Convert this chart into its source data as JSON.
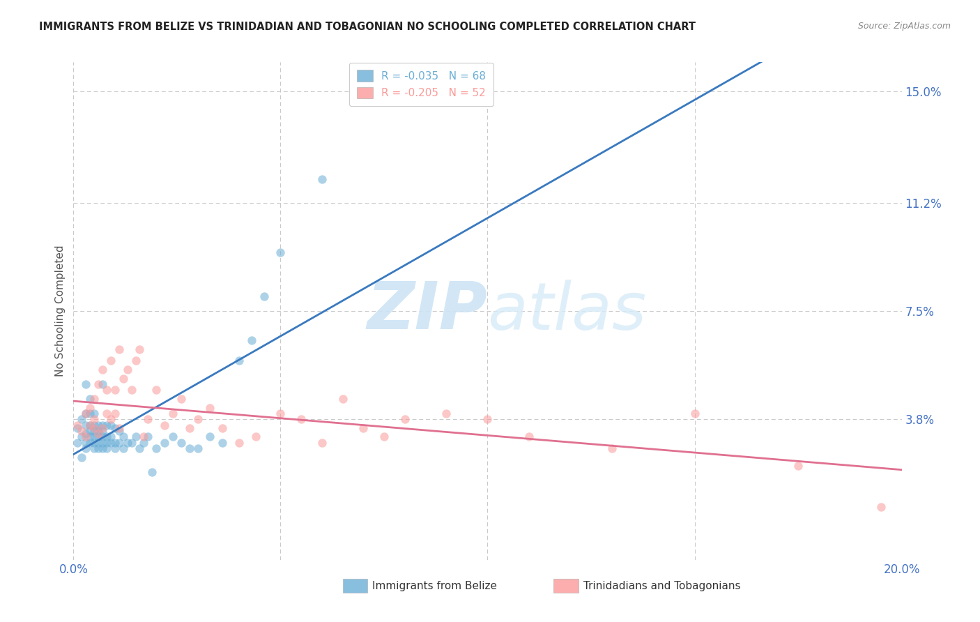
{
  "title": "IMMIGRANTS FROM BELIZE VS TRINIDADIAN AND TOBAGONIAN NO SCHOOLING COMPLETED CORRELATION CHART",
  "source": "Source: ZipAtlas.com",
  "ylabel_label": "No Schooling Completed",
  "right_yticks": [
    0.0,
    0.038,
    0.075,
    0.112,
    0.15
  ],
  "right_yticklabels": [
    "",
    "3.8%",
    "7.5%",
    "11.2%",
    "15.0%"
  ],
  "xmin": 0.0,
  "xmax": 0.2,
  "ymin": -0.01,
  "ymax": 0.16,
  "legend_entries": [
    {
      "label": "R = -0.035   N = 68",
      "color": "#6baed6"
    },
    {
      "label": "R = -0.205   N = 52",
      "color": "#fb9a99"
    }
  ],
  "watermark_zip": "ZIP",
  "watermark_atlas": "atlas",
  "belize_color": "#6baed6",
  "trini_color": "#fb9a99",
  "belize_line_color": "#3a7abf",
  "trini_line_color": "#e07090",
  "belize_R": -0.035,
  "belize_N": 68,
  "trini_R": -0.205,
  "trini_N": 52,
  "belize_x": [
    0.001,
    0.001,
    0.002,
    0.002,
    0.002,
    0.003,
    0.003,
    0.003,
    0.003,
    0.003,
    0.003,
    0.004,
    0.004,
    0.004,
    0.004,
    0.004,
    0.004,
    0.005,
    0.005,
    0.005,
    0.005,
    0.005,
    0.005,
    0.006,
    0.006,
    0.006,
    0.006,
    0.006,
    0.007,
    0.007,
    0.007,
    0.007,
    0.007,
    0.007,
    0.008,
    0.008,
    0.008,
    0.008,
    0.009,
    0.009,
    0.009,
    0.01,
    0.01,
    0.01,
    0.011,
    0.011,
    0.012,
    0.012,
    0.013,
    0.014,
    0.015,
    0.016,
    0.017,
    0.018,
    0.019,
    0.02,
    0.022,
    0.024,
    0.026,
    0.028,
    0.03,
    0.033,
    0.036,
    0.04,
    0.043,
    0.046,
    0.05,
    0.06
  ],
  "belize_y": [
    0.03,
    0.035,
    0.025,
    0.032,
    0.038,
    0.028,
    0.03,
    0.033,
    0.036,
    0.04,
    0.05,
    0.03,
    0.032,
    0.034,
    0.036,
    0.04,
    0.045,
    0.028,
    0.03,
    0.032,
    0.034,
    0.036,
    0.04,
    0.028,
    0.03,
    0.032,
    0.034,
    0.036,
    0.028,
    0.03,
    0.032,
    0.034,
    0.036,
    0.05,
    0.028,
    0.03,
    0.032,
    0.036,
    0.03,
    0.032,
    0.036,
    0.028,
    0.03,
    0.035,
    0.03,
    0.034,
    0.028,
    0.032,
    0.03,
    0.03,
    0.032,
    0.028,
    0.03,
    0.032,
    0.02,
    0.028,
    0.03,
    0.032,
    0.03,
    0.028,
    0.028,
    0.032,
    0.03,
    0.058,
    0.065,
    0.08,
    0.095,
    0.12
  ],
  "trini_x": [
    0.001,
    0.002,
    0.003,
    0.003,
    0.004,
    0.004,
    0.005,
    0.005,
    0.005,
    0.006,
    0.006,
    0.007,
    0.007,
    0.008,
    0.008,
    0.009,
    0.009,
    0.01,
    0.01,
    0.011,
    0.011,
    0.012,
    0.013,
    0.014,
    0.015,
    0.016,
    0.017,
    0.018,
    0.02,
    0.022,
    0.024,
    0.026,
    0.028,
    0.03,
    0.033,
    0.036,
    0.04,
    0.044,
    0.05,
    0.055,
    0.06,
    0.065,
    0.07,
    0.075,
    0.08,
    0.09,
    0.1,
    0.11,
    0.13,
    0.15,
    0.175,
    0.195
  ],
  "trini_y": [
    0.036,
    0.034,
    0.032,
    0.04,
    0.036,
    0.042,
    0.035,
    0.038,
    0.045,
    0.033,
    0.05,
    0.035,
    0.055,
    0.04,
    0.048,
    0.038,
    0.058,
    0.04,
    0.048,
    0.035,
    0.062,
    0.052,
    0.055,
    0.048,
    0.058,
    0.062,
    0.032,
    0.038,
    0.048,
    0.036,
    0.04,
    0.045,
    0.035,
    0.038,
    0.042,
    0.035,
    0.03,
    0.032,
    0.04,
    0.038,
    0.03,
    0.045,
    0.035,
    0.032,
    0.038,
    0.04,
    0.038,
    0.032,
    0.028,
    0.04,
    0.022,
    0.008
  ]
}
